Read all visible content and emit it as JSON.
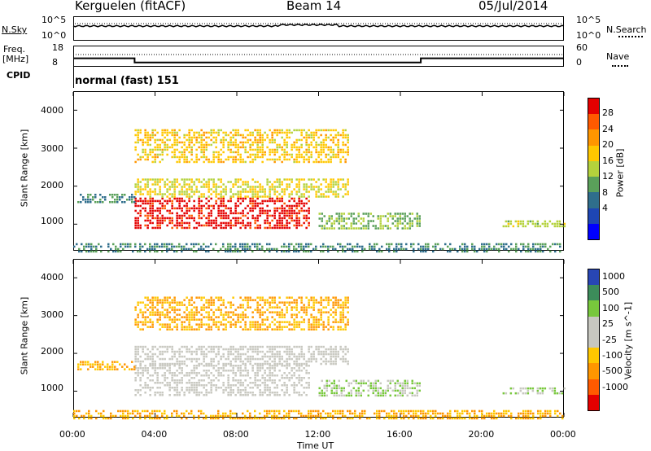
{
  "header": {
    "title": "Kerguelen (fitACF)",
    "beam": "Beam 14",
    "date": "05/Jul/2014"
  },
  "sky_panel": {
    "left_label": "N.Sky",
    "right_label": "N.Search",
    "tick_high": "10^5",
    "tick_low": "10^0"
  },
  "freq_panel": {
    "left_label_1": "Freq.",
    "left_label_2": "[MHz]",
    "left_tick_high": "18",
    "left_tick_low": "8",
    "right_label": "Nave",
    "right_tick_high": "60",
    "right_tick_low": "0"
  },
  "cpid_panel": {
    "label": "CPID",
    "value": "normal (fast) 151"
  },
  "power_panel": {
    "ylabel": "Slant Range [km]",
    "yticks": [
      "4000",
      "3000",
      "2000",
      "1000"
    ],
    "cbar_label": "Power [dB]",
    "cbar_ticks": [
      "28",
      "24",
      "20",
      "16",
      "12",
      "8",
      "4"
    ],
    "cbar_colors": [
      "#e40000",
      "#ff5a00",
      "#ff9600",
      "#ffc800",
      "#b4d23c",
      "#5aa05a",
      "#2f6e8c",
      "#1e46b4",
      "#0000ff"
    ]
  },
  "velocity_panel": {
    "ylabel": "Slant Range [km]",
    "yticks": [
      "4000",
      "3000",
      "2000",
      "1000"
    ],
    "cbar_label": "Velocity [m s^-1]",
    "cbar_ticks": [
      "1000",
      "500",
      "100",
      "25",
      "-25",
      "-100",
      "-500",
      "-1000"
    ],
    "cbar_colors": [
      "#2846b4",
      "#3c8c5a",
      "#78c83c",
      "#c8c8c0",
      "#c8c8c0",
      "#ffc800",
      "#ff9600",
      "#ff5a00",
      "#e40000"
    ]
  },
  "xaxis": {
    "label": "Time UT",
    "ticks": [
      "00:00",
      "04:00",
      "08:00",
      "12:00",
      "16:00",
      "20:00",
      "00:00"
    ]
  },
  "chart_data": [
    {
      "type": "line",
      "name": "frequency",
      "xlabel": "Time UT",
      "ylabel": "Freq. [MHz]",
      "x": [
        0,
        3,
        3,
        17,
        17,
        24
      ],
      "values": [
        12,
        12,
        10,
        10,
        12,
        12
      ],
      "ylim": [
        8,
        18
      ]
    },
    {
      "type": "heatmap",
      "title": "Power [dB]",
      "xlabel": "Time UT",
      "ylabel": "Slant Range [km]",
      "xlim": [
        0,
        24
      ],
      "ylim": [
        300,
        4500
      ],
      "regions": [
        {
          "t_start": 3,
          "t_end": 11.5,
          "range_start": 900,
          "range_end": 1700,
          "power_db": 28
        },
        {
          "t_start": 3,
          "t_end": 13.5,
          "range_start": 1700,
          "range_end": 2200,
          "power_db": 14
        },
        {
          "t_start": 3,
          "t_end": 13.5,
          "range_start": 2600,
          "range_end": 3500,
          "power_db": 16
        },
        {
          "t_start": 0.2,
          "t_end": 3,
          "range_start": 1600,
          "range_end": 1800,
          "power_db": 6
        },
        {
          "t_start": 12,
          "t_end": 17,
          "range_start": 900,
          "range_end": 1300,
          "power_db": 10
        },
        {
          "t_start": 21,
          "t_end": 24,
          "range_start": 950,
          "range_end": 1100,
          "power_db": 12
        },
        {
          "t_start": 0,
          "t_end": 24,
          "range_start": 300,
          "range_end": 500,
          "power_db": 6
        }
      ]
    },
    {
      "type": "heatmap",
      "title": "Velocity [m s^-1]",
      "xlabel": "Time UT",
      "ylabel": "Slant Range [km]",
      "xlim": [
        0,
        24
      ],
      "ylim": [
        300,
        4500
      ],
      "regions": [
        {
          "t_start": 3,
          "t_end": 11.5,
          "range_start": 900,
          "range_end": 1700,
          "velocity": 0
        },
        {
          "t_start": 3,
          "t_end": 13.5,
          "range_start": 1700,
          "range_end": 2200,
          "velocity": 0
        },
        {
          "t_start": 3,
          "t_end": 13.5,
          "range_start": 2600,
          "range_end": 3500,
          "velocity": -100
        },
        {
          "t_start": 0.2,
          "t_end": 3,
          "range_start": 1600,
          "range_end": 1800,
          "velocity": -100
        },
        {
          "t_start": 12,
          "t_end": 17,
          "range_start": 900,
          "range_end": 1300,
          "velocity": 100
        },
        {
          "t_start": 21,
          "t_end": 24,
          "range_start": 950,
          "range_end": 1100,
          "velocity": 100
        },
        {
          "t_start": 0,
          "t_end": 24,
          "range_start": 300,
          "range_end": 500,
          "velocity": -100
        }
      ]
    }
  ]
}
